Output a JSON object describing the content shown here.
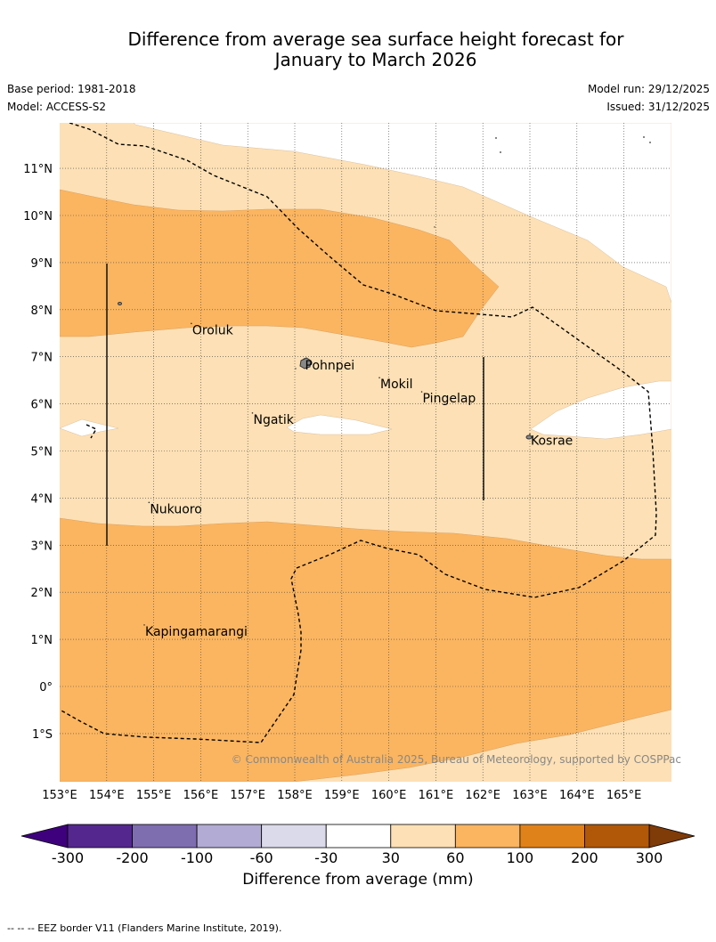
{
  "header": {
    "title_line1": "Difference from average sea surface height forecast for",
    "title_line2": "January to March 2026",
    "base_period": "Base period: 1981-2018",
    "model": "Model: ACCESS-S2",
    "model_run": "Model run: 29/12/2025",
    "issued": "Issued: 31/12/2025"
  },
  "map": {
    "lon_labels": [
      "153°E",
      "154°E",
      "155°E",
      "156°E",
      "157°E",
      "158°E",
      "159°E",
      "160°E",
      "161°E",
      "162°E",
      "163°E",
      "164°E",
      "165°E"
    ],
    "lat_labels": [
      "11°N",
      "10°N",
      "9°N",
      "8°N",
      "7°N",
      "6°N",
      "5°N",
      "4°N",
      "3°N",
      "2°N",
      "1°N",
      "0°",
      "1°S"
    ],
    "places": [
      {
        "name": "Oroluk",
        "lon": 155.8,
        "lat": 7.65
      },
      {
        "name": "Pohnpei",
        "lon": 158.2,
        "lat": 6.9
      },
      {
        "name": "Mokil",
        "lon": 159.8,
        "lat": 6.5
      },
      {
        "name": "Pingelap",
        "lon": 160.7,
        "lat": 6.2
      },
      {
        "name": "Ngatik",
        "lon": 157.1,
        "lat": 5.75
      },
      {
        "name": "Kosrae",
        "lon": 163.0,
        "lat": 5.3
      },
      {
        "name": "Nukuoro",
        "lon": 154.9,
        "lat": 3.85
      },
      {
        "name": "Kapingamarangi",
        "lon": 154.8,
        "lat": 1.25
      }
    ],
    "copyright": "© Commonwealth of Australia 2025, Bureau of Meteorology, supported by COSPPac"
  },
  "colorbar": {
    "ticks": [
      "-300",
      "-200",
      "-100",
      "-60",
      "-30",
      "30",
      "60",
      "100",
      "200",
      "300"
    ],
    "colors": [
      "#54278f",
      "#7e6eb0",
      "#b2acd4",
      "#dadaeb",
      "#ffffff",
      "#fde0b5",
      "#fbb560",
      "#e0821a",
      "#b15708"
    ],
    "extend_low": "#3f007d",
    "extend_high": "#7f3b08",
    "label": "Difference from average (mm)"
  },
  "footnote": "--  --  -- EEZ border V11 (Flanders Marine Institute, 2019)."
}
